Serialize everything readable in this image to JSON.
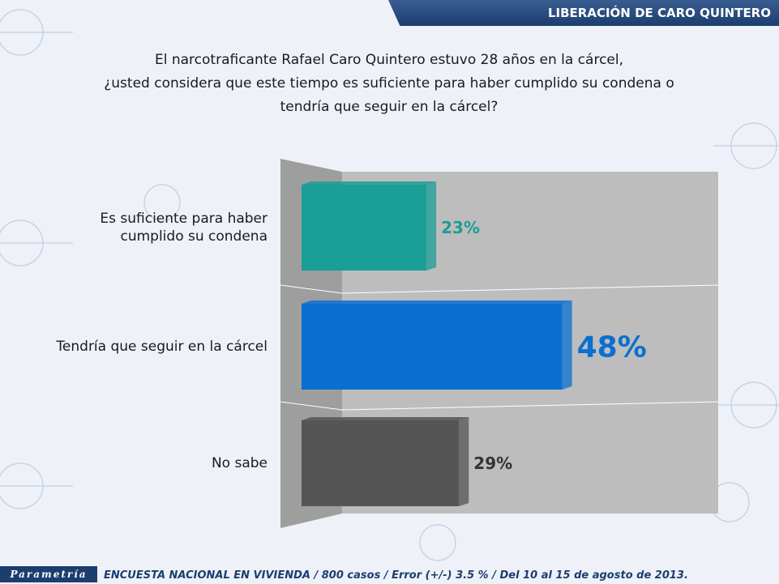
{
  "header": {
    "title": "LIBERACIÓN DE CARO QUINTERO"
  },
  "question": "El narcotraficante Rafael Caro Quintero estuvo 28 años en la cárcel,\n¿usted considera que este tiempo es suficiente para haber cumplido su condena o\ntendría que seguir en la cárcel?",
  "footer": {
    "logo": "Parametría",
    "text": "ENCUESTA NACIONAL EN VIVIENDA / 800 casos / Error (+/-) 3.5 % / Del 10 al 15 de agosto de 2013."
  },
  "chart_data": {
    "type": "bar",
    "orientation": "horizontal",
    "categories": [
      "Es suficiente para haber\ncumplido su condena",
      "Tendría que seguir en la cárcel",
      "No sabe"
    ],
    "values": [
      23,
      48,
      29
    ],
    "value_labels": [
      "23%",
      "48%",
      "29%"
    ],
    "colors": [
      "#1a9e96",
      "#0a6fd0",
      "#555555"
    ],
    "label_colors": [
      "#1a9e96",
      "#0a6fd0",
      "#333333"
    ],
    "xlim": [
      0,
      100
    ],
    "grid": true,
    "legend": "none"
  }
}
